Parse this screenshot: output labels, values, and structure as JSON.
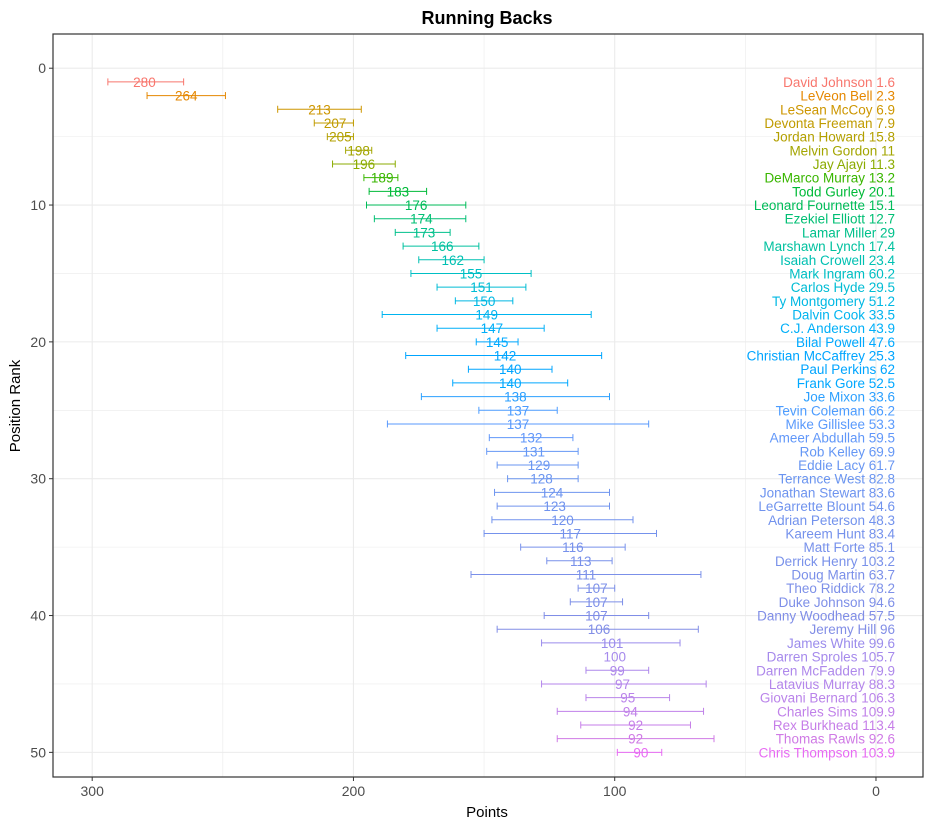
{
  "chart_data": {
    "type": "errorbar",
    "title": "Running Backs",
    "xlabel": "Points",
    "ylabel": "Position Rank",
    "x_reversed": true,
    "xlim": [
      315,
      -18
    ],
    "ylim": [
      51.8,
      -2.5
    ],
    "y_reversed": true,
    "x_ticks": [
      300,
      200,
      100,
      0
    ],
    "y_ticks": [
      0,
      10,
      20,
      30,
      40,
      50
    ],
    "grid": true,
    "players": [
      {
        "rank": 1,
        "name": "David Johnson",
        "points": 280,
        "low": 265,
        "high": 294,
        "value": "1.6",
        "color": "#F8766D"
      },
      {
        "rank": 2,
        "name": "LeVeon Bell",
        "points": 264,
        "low": 249,
        "high": 279,
        "value": "2.3",
        "color": "#E58700"
      },
      {
        "rank": 3,
        "name": "LeSean McCoy",
        "points": 213,
        "low": 197,
        "high": 229,
        "value": "6.9",
        "color": "#CD9600"
      },
      {
        "rank": 4,
        "name": "Devonta Freeman",
        "points": 207,
        "low": 200,
        "high": 215,
        "value": "7.9",
        "color": "#C09B00"
      },
      {
        "rank": 5,
        "name": "Jordan Howard",
        "points": 205,
        "low": 200,
        "high": 210,
        "value": "15.8",
        "color": "#B3A000"
      },
      {
        "rank": 6,
        "name": "Melvin Gordon",
        "points": 198,
        "low": 193,
        "high": 203,
        "value": "11",
        "color": "#A3A500"
      },
      {
        "rank": 7,
        "name": "Jay Ajayi",
        "points": 196,
        "low": 184,
        "high": 208,
        "value": "11.3",
        "color": "#8BAB00"
      },
      {
        "rank": 8,
        "name": "DeMarco Murray",
        "points": 189,
        "low": 183,
        "high": 196,
        "value": "13.2",
        "color": "#39B600"
      },
      {
        "rank": 9,
        "name": "Todd Gurley",
        "points": 183,
        "low": 172,
        "high": 194,
        "value": "20.1",
        "color": "#00BA38"
      },
      {
        "rank": 10,
        "name": "Leonard Fournette",
        "points": 176,
        "low": 157,
        "high": 195,
        "value": "15.1",
        "color": "#00BC59"
      },
      {
        "rank": 11,
        "name": "Ezekiel Elliott",
        "points": 174,
        "low": 157,
        "high": 192,
        "value": "12.7",
        "color": "#00BF74"
      },
      {
        "rank": 12,
        "name": "Lamar Miller",
        "points": 173,
        "low": 163,
        "high": 184,
        "value": "29",
        "color": "#00C08B"
      },
      {
        "rank": 13,
        "name": "Marshawn Lynch",
        "points": 166,
        "low": 152,
        "high": 181,
        "value": "17.4",
        "color": "#00C19F"
      },
      {
        "rank": 14,
        "name": "Isaiah Crowell",
        "points": 162,
        "low": 150,
        "high": 175,
        "value": "23.4",
        "color": "#00C0B2"
      },
      {
        "rank": 15,
        "name": "Mark Ingram",
        "points": 155,
        "low": 132,
        "high": 178,
        "value": "60.2",
        "color": "#00BFC4"
      },
      {
        "rank": 16,
        "name": "Carlos Hyde",
        "points": 151,
        "low": 134,
        "high": 168,
        "value": "29.5",
        "color": "#00BCD4"
      },
      {
        "rank": 17,
        "name": "Ty Montgomery",
        "points": 150,
        "low": 139,
        "high": 161,
        "value": "51.2",
        "color": "#00B8E3"
      },
      {
        "rank": 18,
        "name": "Dalvin Cook",
        "points": 149,
        "low": 109,
        "high": 189,
        "value": "33.5",
        "color": "#00B4EF"
      },
      {
        "rank": 19,
        "name": "C.J. Anderson",
        "points": 147,
        "low": 127,
        "high": 168,
        "value": "43.9",
        "color": "#00AFF8"
      },
      {
        "rank": 20,
        "name": "Bilal Powell",
        "points": 145,
        "low": 137,
        "high": 153,
        "value": "47.6",
        "color": "#00A9FF"
      },
      {
        "rank": 21,
        "name": "Christian McCaffrey",
        "points": 142,
        "low": 105,
        "high": 180,
        "value": "25.3",
        "color": "#00A5FF"
      },
      {
        "rank": 22,
        "name": "Paul Perkins",
        "points": 140,
        "low": 124,
        "high": 156,
        "value": "62",
        "color": "#00A5FF"
      },
      {
        "rank": 23,
        "name": "Frank Gore",
        "points": 140,
        "low": 118,
        "high": 162,
        "value": "52.5",
        "color": "#00A8FF"
      },
      {
        "rank": 24,
        "name": "Joe Mixon",
        "points": 138,
        "low": 102,
        "high": 174,
        "value": "33.6",
        "color": "#2CA0FF"
      },
      {
        "rank": 25,
        "name": "Tevin Coleman",
        "points": 137,
        "low": 122,
        "high": 152,
        "value": "66.2",
        "color": "#4C9CFF"
      },
      {
        "rank": 26,
        "name": "Mike Gillislee",
        "points": 137,
        "low": 87,
        "high": 187,
        "value": "53.3",
        "color": "#5A9AFC"
      },
      {
        "rank": 27,
        "name": "Ameer Abdullah",
        "points": 132,
        "low": 116,
        "high": 148,
        "value": "59.5",
        "color": "#6197F9"
      },
      {
        "rank": 28,
        "name": "Rob Kelley",
        "points": 131,
        "low": 114,
        "high": 149,
        "value": "69.9",
        "color": "#6597F5"
      },
      {
        "rank": 29,
        "name": "Eddie Lacy",
        "points": 129,
        "low": 114,
        "high": 145,
        "value": "61.7",
        "color": "#6996F2"
      },
      {
        "rank": 30,
        "name": "Terrance West",
        "points": 128,
        "low": 114,
        "high": 141,
        "value": "82.8",
        "color": "#6B95F0"
      },
      {
        "rank": 31,
        "name": "Jonathan Stewart",
        "points": 124,
        "low": 102,
        "high": 146,
        "value": "83.6",
        "color": "#6E94EF"
      },
      {
        "rank": 32,
        "name": "LeGarrette Blount",
        "points": 123,
        "low": 102,
        "high": 145,
        "value": "54.6",
        "color": "#7093EE"
      },
      {
        "rank": 33,
        "name": "Adrian Peterson",
        "points": 120,
        "low": 93,
        "high": 147,
        "value": "48.3",
        "color": "#7292ED"
      },
      {
        "rank": 34,
        "name": "Kareem Hunt",
        "points": 117,
        "low": 84,
        "high": 150,
        "value": "83.4",
        "color": "#7592EC"
      },
      {
        "rank": 35,
        "name": "Matt Forte",
        "points": 116,
        "low": 96,
        "high": 136,
        "value": "85.1",
        "color": "#7791EB"
      },
      {
        "rank": 36,
        "name": "Derrick Henry",
        "points": 113,
        "low": 101,
        "high": 126,
        "value": "103.2",
        "color": "#7991EA"
      },
      {
        "rank": 37,
        "name": "Doug Martin",
        "points": 111,
        "low": 67,
        "high": 155,
        "value": "63.7",
        "color": "#7B90E9"
      },
      {
        "rank": 38,
        "name": "Theo Riddick",
        "points": 107,
        "low": 100,
        "high": 114,
        "value": "78.2",
        "color": "#7D90E8"
      },
      {
        "rank": 39,
        "name": "Duke Johnson",
        "points": 107,
        "low": 97,
        "high": 117,
        "value": "94.6",
        "color": "#7E8FE8"
      },
      {
        "rank": 40,
        "name": "Danny Woodhead",
        "points": 107,
        "low": 87,
        "high": 127,
        "value": "57.5",
        "color": "#808EE7"
      },
      {
        "rank": 41,
        "name": "Jeremy Hill",
        "points": 106,
        "low": 68,
        "high": 145,
        "value": "96",
        "color": "#828EE6"
      },
      {
        "rank": 42,
        "name": "James White",
        "points": 101,
        "low": 75,
        "high": 128,
        "value": "99.6",
        "color": "#9B8CEC"
      },
      {
        "rank": 43,
        "name": "Darren Sproles",
        "points": 100,
        "low": null,
        "high": null,
        "value": "105.7",
        "color": "#A68AEC"
      },
      {
        "rank": 44,
        "name": "Darren McFadden",
        "points": 99,
        "low": 87,
        "high": 111,
        "value": "79.9",
        "color": "#AE88EB"
      },
      {
        "rank": 45,
        "name": "Latavius Murray",
        "points": 97,
        "low": 65,
        "high": 128,
        "value": "88.3",
        "color": "#B486EB"
      },
      {
        "rank": 46,
        "name": "Giovani Bernard",
        "points": 95,
        "low": 79,
        "high": 111,
        "value": "106.3",
        "color": "#BA84EA"
      },
      {
        "rank": 47,
        "name": "Charles Sims",
        "points": 94,
        "low": 66,
        "high": 122,
        "value": "109.9",
        "color": "#C081E9"
      },
      {
        "rank": 48,
        "name": "Rex Burkhead",
        "points": 92,
        "low": 71,
        "high": 113,
        "value": "113.4",
        "color": "#C67EE8"
      },
      {
        "rank": 49,
        "name": "Thomas Rawls",
        "points": 92,
        "low": 62,
        "high": 122,
        "value": "92.6",
        "color": "#CF7AE5"
      },
      {
        "rank": 50,
        "name": "Chris Thompson",
        "points": 90,
        "low": 82,
        "high": 99,
        "value": "103.9",
        "color": "#E76BF3"
      }
    ]
  }
}
